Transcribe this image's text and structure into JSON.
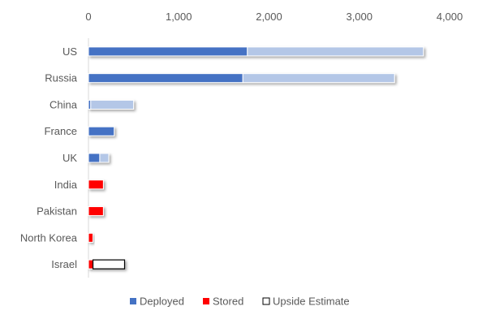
{
  "chart_data": {
    "type": "bar",
    "orientation": "horizontal",
    "stacked": true,
    "title": "",
    "xlabel": "",
    "ylabel": "",
    "xlim": [
      0,
      4000
    ],
    "x_ticks": [
      "0",
      "1,000",
      "2,000",
      "3,000",
      "4,000"
    ],
    "x_tick_values": [
      0,
      1000,
      2000,
      3000,
      4000
    ],
    "x_axis_position": "top",
    "grid": false,
    "categories": [
      "US",
      "Russia",
      "China",
      "France",
      "UK",
      "India",
      "Pakistan",
      "North Korea",
      "Israel"
    ],
    "series": [
      {
        "name": "Deployed",
        "color": "#4472c4",
        "values": [
          1760,
          1710,
          25,
          285,
          125,
          0,
          0,
          0,
          0
        ]
      },
      {
        "name": "Stored",
        "color": "#ff0000",
        "point_colors": [
          "#b4c7e7",
          "#b4c7e7",
          "#b4c7e7",
          "#b4c7e7",
          "#b4c7e7",
          "#ff0000",
          "#ff0000",
          "#ff0000",
          "#ff0000"
        ],
        "values": [
          1950,
          1680,
          475,
          0,
          100,
          165,
          165,
          50,
          50
        ]
      },
      {
        "name": "Upside Estimate",
        "color": "#ffffff",
        "values": [
          0,
          0,
          0,
          0,
          0,
          0,
          0,
          0,
          350
        ]
      }
    ],
    "legend": {
      "position": "bottom",
      "entries": [
        "Deployed",
        "Stored",
        "Upside Estimate"
      ]
    }
  }
}
